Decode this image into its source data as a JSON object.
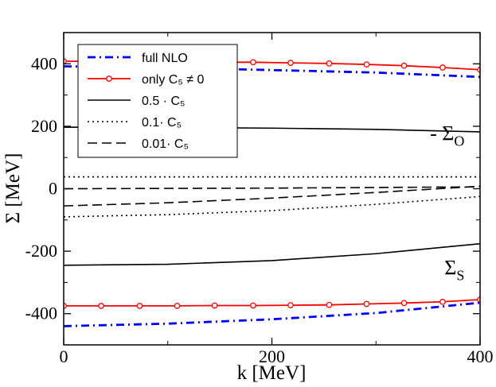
{
  "chart_data": {
    "type": "line",
    "xlabel": "k [MeV]",
    "ylabel": "Σ [MeV]",
    "xlim": [
      0,
      400
    ],
    "ylim": [
      -500,
      500
    ],
    "x_ticks": [
      0,
      200,
      400
    ],
    "y_ticks": [
      -400,
      -200,
      0,
      200,
      400
    ],
    "grid": false,
    "legend_position": "top-left",
    "annotations": [
      {
        "text": "- Σ",
        "sub": "O",
        "x": 385,
        "y": 155
      },
      {
        "text": "Σ",
        "sub": "S",
        "x": 385,
        "y": -275
      }
    ],
    "series": [
      {
        "name": "full NLO",
        "color": "#0000ff",
        "style": "dashdot",
        "markers": false,
        "curves": [
          {
            "x": [
              0,
              100,
              200,
              300,
              400
            ],
            "y": [
              392,
              387,
              380,
              372,
              358
            ]
          },
          {
            "x": [
              0,
              100,
              200,
              300,
              400
            ],
            "y": [
              -440,
              -432,
              -418,
              -398,
              -365
            ]
          }
        ]
      },
      {
        "name": "only C₅ ≠ 0",
        "color": "#ff0000",
        "style": "solid",
        "markers": true,
        "curves": [
          {
            "x": [
              0,
              36,
              73,
              109,
              145,
              182,
              218,
              255,
              291,
              327,
              364,
              400
            ],
            "y": [
              408,
              408,
              407,
              406,
              405,
              405,
              403,
              401,
              398,
              394,
              388,
              381
            ]
          },
          {
            "x": [
              0,
              36,
              73,
              109,
              145,
              182,
              218,
              255,
              291,
              327,
              364,
              400
            ],
            "y": [
              -375,
              -375,
              -375,
              -375,
              -374,
              -374,
              -373,
              -372,
              -369,
              -366,
              -362,
              -355
            ]
          }
        ]
      },
      {
        "name": "0.5 · C₅",
        "color": "#000000",
        "style": "solid",
        "markers": false,
        "curves": [
          {
            "x": [
              0,
              100,
              200,
              300,
              400
            ],
            "y": [
              197,
              196,
              194,
              190,
              182
            ]
          },
          {
            "x": [
              0,
              100,
              200,
              300,
              400
            ],
            "y": [
              -245,
              -242,
              -230,
              -208,
              -176
            ]
          }
        ]
      },
      {
        "name": "0.1· C₅",
        "color": "#000000",
        "style": "dotted",
        "markers": false,
        "curves": [
          {
            "x": [
              0,
              100,
              200,
              300,
              400
            ],
            "y": [
              38,
              38,
              38,
              38,
              38
            ]
          },
          {
            "x": [
              0,
              100,
              200,
              300,
              400
            ],
            "y": [
              -90,
              -83,
              -70,
              -50,
              -25
            ]
          }
        ]
      },
      {
        "name": "0.01· C₅",
        "color": "#000000",
        "style": "dashed",
        "markers": false,
        "curves": [
          {
            "x": [
              0,
              100,
              200,
              300,
              400
            ],
            "y": [
              0,
              1,
              2,
              4,
              6
            ]
          },
          {
            "x": [
              0,
              100,
              200,
              300,
              400
            ],
            "y": [
              -55,
              -45,
              -30,
              -12,
              8
            ]
          }
        ]
      }
    ]
  }
}
